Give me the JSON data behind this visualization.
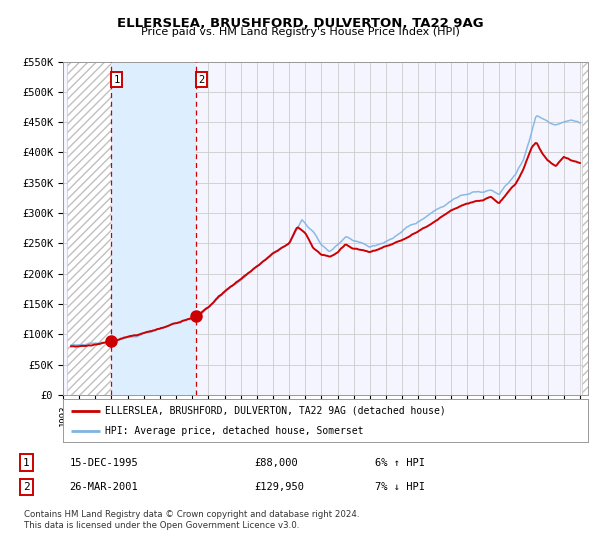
{
  "title1": "ELLERSLEA, BRUSHFORD, DULVERTON, TA22 9AG",
  "title2": "Price paid vs. HM Land Registry's House Price Index (HPI)",
  "ylabel_ticks": [
    "£0",
    "£50K",
    "£100K",
    "£150K",
    "£200K",
    "£250K",
    "£300K",
    "£350K",
    "£400K",
    "£450K",
    "£500K",
    "£550K"
  ],
  "ylabel_values": [
    0,
    50000,
    100000,
    150000,
    200000,
    250000,
    300000,
    350000,
    400000,
    450000,
    500000,
    550000
  ],
  "ylim": [
    0,
    550000
  ],
  "xlim_start": 1993.25,
  "xlim_end": 2025.5,
  "xticks": [
    1993,
    1994,
    1995,
    1996,
    1997,
    1998,
    1999,
    2000,
    2001,
    2002,
    2003,
    2004,
    2005,
    2006,
    2007,
    2008,
    2009,
    2010,
    2011,
    2012,
    2013,
    2014,
    2015,
    2016,
    2017,
    2018,
    2019,
    2020,
    2021,
    2022,
    2023,
    2024,
    2025
  ],
  "sale1_x": 1995.96,
  "sale1_y": 88000,
  "sale2_x": 2001.23,
  "sale2_y": 129950,
  "vline1_x": 1995.96,
  "vline2_x": 2001.23,
  "red_line_color": "#cc0000",
  "blue_line_color": "#7eb4e0",
  "shaded_color": "#ddeeff",
  "grid_color": "#cccccc",
  "background_color": "#ffffff",
  "plot_bg_color": "#f5f5ff",
  "legend_line1": "ELLERSLEA, BRUSHFORD, DULVERTON, TA22 9AG (detached house)",
  "legend_line2": "HPI: Average price, detached house, Somerset",
  "table_row1": [
    "1",
    "15-DEC-1995",
    "£88,000",
    "6% ↑ HPI"
  ],
  "table_row2": [
    "2",
    "26-MAR-2001",
    "£129,950",
    "7% ↓ HPI"
  ],
  "footer": "Contains HM Land Registry data © Crown copyright and database right 2024.\nThis data is licensed under the Open Government Licence v3.0."
}
